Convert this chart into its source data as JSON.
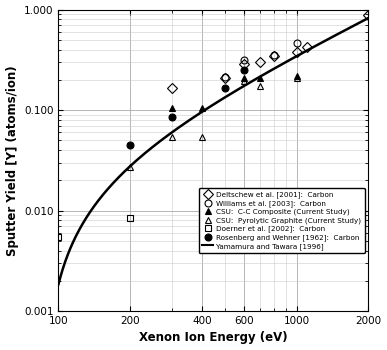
{
  "xlabel": "Xenon Ion Energy (eV)",
  "ylabel": "Sputter Yield [Y] (atoms/ion)",
  "xlim": [
    100,
    2000
  ],
  "ylim": [
    0.001,
    1.0
  ],
  "deltschew": {
    "x": [
      300,
      500,
      600,
      700,
      800,
      1000,
      1100,
      2000
    ],
    "y": [
      0.165,
      0.21,
      0.285,
      0.3,
      0.345,
      0.38,
      0.42,
      0.88
    ],
    "marker": "D",
    "mfc": "none",
    "size": 5,
    "label": "Deltschew et al. [2001]:  Carbon"
  },
  "williams": {
    "x": [
      500,
      600,
      800,
      1000
    ],
    "y": [
      0.215,
      0.315,
      0.355,
      0.46
    ],
    "marker": "o",
    "mfc": "none",
    "size": 5,
    "label": "Williams et al. [2003]:  Carbon"
  },
  "csu_cc": {
    "x": [
      300,
      400,
      600,
      700,
      1000
    ],
    "y": [
      0.105,
      0.105,
      0.21,
      0.21,
      0.22
    ],
    "marker": "^",
    "mfc": "black",
    "size": 5,
    "label": "CSU:  C-C Composite (Current Study)"
  },
  "csu_pg": {
    "x": [
      200,
      300,
      400,
      600,
      700,
      1000
    ],
    "y": [
      0.027,
      0.054,
      0.054,
      0.195,
      0.175,
      0.21
    ],
    "marker": "^",
    "mfc": "none",
    "size": 5,
    "label": "CSU:  Pyrolytic Graphite (Current Study)"
  },
  "doerner": {
    "x": [
      100,
      200
    ],
    "y": [
      0.0055,
      0.0085
    ],
    "marker": "s",
    "mfc": "none",
    "size": 5,
    "label": "Doerner et al. [2002]:  Carbon"
  },
  "rosenberg": {
    "x": [
      200,
      300,
      500,
      600
    ],
    "y": [
      0.045,
      0.085,
      0.165,
      0.25
    ],
    "marker": "o",
    "mfc": "black",
    "size": 5,
    "label": "Rosenberg and Wehner [1962]:  Carbon"
  },
  "yamamura_label": "Yamamura and Tawara [1996]",
  "legend_entries": [
    {
      "marker": "D",
      "mfc": "none",
      "ls": "none",
      "lw": 0,
      "label": "Deltschew et al. [2001]:  Carbon"
    },
    {
      "marker": "o",
      "mfc": "none",
      "ls": "none",
      "lw": 0,
      "label": "Williams et al. [2003]:  Carbon"
    },
    {
      "marker": "^",
      "mfc": "black",
      "ls": "none",
      "lw": 0,
      "label": "CSU:  C-C Composite (Current Study)"
    },
    {
      "marker": "^",
      "mfc": "none",
      "ls": "none",
      "lw": 0,
      "label": "CSU:  Pyrolytic Graphite (Current Study)"
    },
    {
      "marker": "s",
      "mfc": "none",
      "ls": "none",
      "lw": 0,
      "label": "Doerner et al. [2002]:  Carbon"
    },
    {
      "marker": "o",
      "mfc": "black",
      "ls": "none",
      "lw": 0,
      "label": "Rosenberg and Wehner [1962]:  Carbon"
    },
    {
      "marker": "none",
      "mfc": "none",
      "ls": "-",
      "lw": 1.5,
      "label": "Yamamura and Tawara [1996]"
    }
  ]
}
